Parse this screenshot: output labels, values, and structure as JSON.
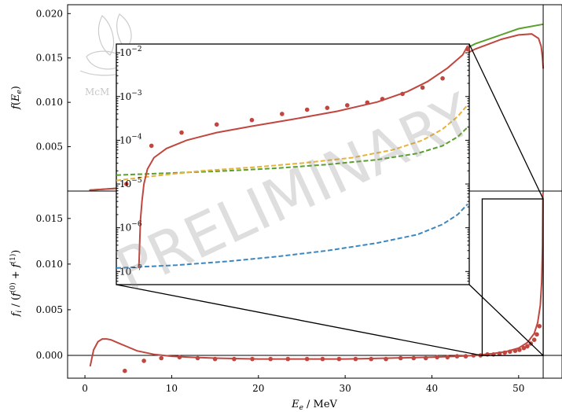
{
  "watermark": "PRELIMINARY",
  "logo": {
    "text": "McM"
  },
  "colors": {
    "red": "#c0473f",
    "green": "#5aa02c",
    "orange": "#e8b23a",
    "blue": "#3a87c0"
  },
  "chart_data": [
    {
      "panel": "top",
      "type": "line",
      "xlabel": "",
      "ylabel": "f(E_e)",
      "xlim": [
        -2,
        55
      ],
      "ylim": [
        0,
        0.021
      ],
      "x_ticks": [
        0,
        10,
        20,
        30,
        40,
        50
      ],
      "y_ticks": [
        "0.005",
        "0.010",
        "0.015",
        "0.020"
      ],
      "y_tick_values": [
        0.005,
        0.01,
        0.015,
        0.02
      ],
      "vline": 52.83,
      "series": [
        {
          "color": "#5aa02c",
          "style": "solid",
          "x": [
            0.5,
            5,
            10,
            15,
            20,
            25,
            30,
            35,
            40,
            45,
            50,
            52.83
          ],
          "y": [
            0.0001,
            0.0004,
            0.0013,
            0.0026,
            0.0044,
            0.0065,
            0.0088,
            0.0112,
            0.0141,
            0.0166,
            0.0183,
            0.0188
          ]
        },
        {
          "color": "#c0473f",
          "style": "solid",
          "x": [
            0.5,
            5,
            10,
            15,
            20,
            25,
            30,
            35,
            40,
            45,
            48,
            50,
            51.5,
            52.3,
            52.6,
            52.75,
            52.83
          ],
          "y": [
            0.0001,
            0.0004,
            0.0013,
            0.0026,
            0.0044,
            0.0064,
            0.0086,
            0.0109,
            0.0135,
            0.016,
            0.0171,
            0.0176,
            0.0177,
            0.0172,
            0.0163,
            0.015,
            0.0138
          ]
        }
      ]
    },
    {
      "panel": "bottom",
      "type": "line",
      "xlabel": "E_e / MeV",
      "ylabel": "f_i / (f^(0) + f^(1))",
      "xlim": [
        -2,
        55
      ],
      "ylim": [
        -0.0025,
        0.018
      ],
      "x_ticks": [
        0,
        10,
        20,
        30,
        40,
        50
      ],
      "y_ticks": [
        "0.000",
        "0.005",
        "0.010",
        "0.015"
      ],
      "y_tick_values": [
        0.0,
        0.005,
        0.01,
        0.015
      ],
      "vline": 52.83,
      "hline": 0.0,
      "series": [
        {
          "color": "#c0473f",
          "style": "solid",
          "x": [
            0.6,
            1.0,
            1.5,
            2.0,
            2.5,
            3.0,
            4,
            5,
            6,
            8,
            10,
            12,
            15,
            20,
            25,
            30,
            35,
            40,
            43,
            45,
            47,
            48.5,
            50,
            51,
            51.8,
            52.2,
            52.5,
            52.65,
            52.75,
            52.8
          ],
          "y": [
            -0.0012,
            0.0006,
            0.0015,
            0.0018,
            0.0018,
            0.0017,
            0.0013,
            0.0009,
            0.0005,
            0.0001,
            -0.0001,
            -0.0002,
            -0.0003,
            -0.0004,
            -0.0004,
            -0.0004,
            -0.0003,
            -0.0002,
            -0.0001,
            0.0,
            0.0002,
            0.0004,
            0.0008,
            0.0014,
            0.0024,
            0.0036,
            0.0055,
            0.008,
            0.012,
            0.0178
          ]
        },
        {
          "color": "#c0473f",
          "style": "dots",
          "x": [
            4.6,
            6.8,
            8.8,
            10.9,
            13.0,
            15.0,
            17.2,
            19.3,
            21.4,
            23.4,
            25.6,
            27.4,
            29.3,
            31.2,
            33.0,
            34.7,
            36.4,
            37.9,
            39.3,
            40.6,
            41.8,
            42.9,
            43.9,
            44.8,
            45.6,
            46.4,
            47.1,
            47.8,
            48.4,
            49.0,
            49.6,
            50.1,
            50.6,
            51.0,
            51.4,
            51.8,
            52.1,
            52.4
          ],
          "y": [
            -0.0017,
            -0.0006,
            -0.0003,
            -0.0002,
            -0.0003,
            -0.0004,
            -0.0004,
            -0.0004,
            -0.0004,
            -0.0004,
            -0.0004,
            -0.0004,
            -0.0004,
            -0.0004,
            -0.0004,
            -0.0004,
            -0.0003,
            -0.0003,
            -0.0003,
            -0.0002,
            -0.0002,
            -0.0001,
            -0.0001,
            0.0,
            0.0,
            0.0001,
            0.0001,
            0.0002,
            0.0003,
            0.0004,
            0.0005,
            0.0006,
            0.0008,
            0.001,
            0.0013,
            0.0017,
            0.0023,
            0.0032
          ]
        }
      ]
    },
    {
      "panel": "inset",
      "type": "line",
      "scale": "log",
      "xlim": [
        45.8,
        52.83
      ],
      "ylim_log10": [
        -7.3,
        -1.8
      ],
      "y_ticks": [
        "10^-2",
        "10^-3",
        "10^-4",
        "10^-5",
        "10^-6",
        "10^-7"
      ],
      "y_tick_exponents": [
        -2,
        -3,
        -4,
        -5,
        -6,
        -7
      ],
      "series": [
        {
          "color": "#3a87c0",
          "style": "dashed",
          "x": [
            45.8,
            47,
            48,
            49,
            50,
            51,
            51.8,
            52.3,
            52.6,
            52.8
          ],
          "y": [
            1.2e-07,
            1.4e-07,
            1.7e-07,
            2.2e-07,
            3e-07,
            4.5e-07,
            7e-07,
            1.2e-06,
            2e-06,
            3.5e-06
          ]
        },
        {
          "color": "#5aa02c",
          "style": "dashed",
          "x": [
            45.8,
            47,
            48,
            49,
            50,
            51,
            51.8,
            52.3,
            52.6,
            52.8
          ],
          "y": [
            1.6e-05,
            1.8e-05,
            2e-05,
            2.3e-05,
            2.8e-05,
            3.6e-05,
            5e-05,
            7.5e-05,
            0.00012,
            0.0002
          ]
        },
        {
          "color": "#e8b23a",
          "style": "dashed",
          "x": [
            45.8,
            46.5,
            47.5,
            48.5,
            49.5,
            50.5,
            51.3,
            51.9,
            52.3,
            52.6,
            52.8
          ],
          "y": [
            1.2e-05,
            1.5e-05,
            2e-05,
            2.4e-05,
            3e-05,
            4e-05,
            6e-05,
            0.0001,
            0.00018,
            0.00035,
            0.00065
          ]
        },
        {
          "color": "#c0473f",
          "style": "solid",
          "x": [
            46.25,
            46.26,
            46.28,
            46.31,
            46.35,
            46.42,
            46.55,
            46.8,
            47.2,
            47.8,
            48.5,
            49.3,
            50.2,
            51.0,
            51.6,
            52.0,
            52.4,
            52.7,
            52.8
          ],
          "y": [
            1.2e-07,
            3e-07,
            1.5e-06,
            4e-06,
            1e-05,
            2.2e-05,
            4e-05,
            6.5e-05,
            0.0001,
            0.00015,
            0.00021,
            0.0003,
            0.00046,
            0.00075,
            0.0013,
            0.0022,
            0.0045,
            0.009,
            0.0145
          ]
        },
        {
          "color": "#c0473f",
          "style": "dots",
          "x": [
            46.0,
            46.5,
            47.1,
            47.8,
            48.5,
            49.1,
            49.6,
            50.0,
            50.4,
            50.8,
            51.1,
            51.5,
            51.9,
            52.3,
            52.8
          ],
          "y": [
            1e-05,
            7.5e-05,
            0.00015,
            0.00023,
            0.00029,
            0.0004,
            0.0005,
            0.00055,
            0.00063,
            0.00073,
            0.00088,
            0.00115,
            0.0016,
            0.0026,
            0.012
          ]
        }
      ]
    }
  ]
}
